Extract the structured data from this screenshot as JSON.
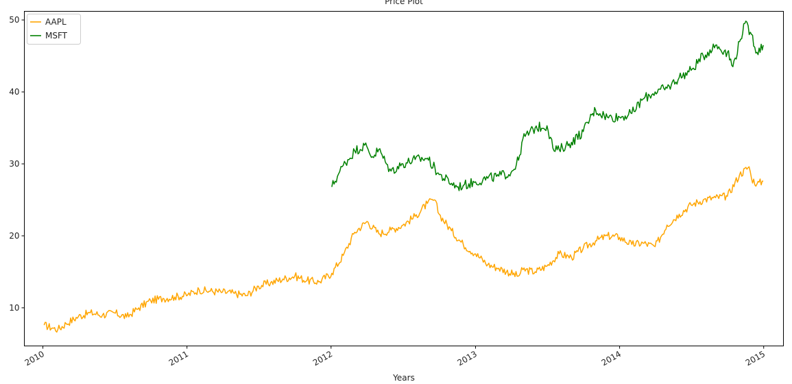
{
  "chart_data": {
    "type": "line",
    "title": "Price Plot",
    "xlabel": "Years",
    "ylabel": "",
    "x_range": [
      "2009-11-15",
      "2015-02-20"
    ],
    "ylim": [
      4.7,
      51.2
    ],
    "x_ticks": [
      "2010",
      "2011",
      "2012",
      "2013",
      "2014",
      "2015"
    ],
    "y_ticks": [
      10,
      20,
      30,
      40,
      50
    ],
    "grid": false,
    "legend_position": "top-left",
    "series": [
      {
        "name": "AAPL",
        "color": "#ffa500",
        "x": [
          "2010-01-04",
          "2010-01-25",
          "2010-02-08",
          "2010-03-01",
          "2010-04-01",
          "2010-05-01",
          "2010-06-01",
          "2010-07-01",
          "2010-08-01",
          "2010-09-01",
          "2010-10-01",
          "2010-11-01",
          "2010-12-01",
          "2011-01-03",
          "2011-02-01",
          "2011-03-01",
          "2011-04-01",
          "2011-05-01",
          "2011-06-01",
          "2011-07-01",
          "2011-08-01",
          "2011-09-01",
          "2011-10-01",
          "2011-11-01",
          "2011-12-01",
          "2012-01-03",
          "2012-02-01",
          "2012-03-01",
          "2012-04-01",
          "2012-05-01",
          "2012-06-01",
          "2012-07-01",
          "2012-08-01",
          "2012-09-01",
          "2012-09-19",
          "2012-10-01",
          "2012-11-01",
          "2012-12-01",
          "2013-01-01",
          "2013-02-01",
          "2013-03-01",
          "2013-04-19",
          "2013-05-01",
          "2013-06-01",
          "2013-07-01",
          "2013-08-01",
          "2013-09-01",
          "2013-10-01",
          "2013-11-01",
          "2013-12-01",
          "2014-01-01",
          "2014-02-01",
          "2014-03-01",
          "2014-04-01",
          "2014-05-01",
          "2014-06-01",
          "2014-07-01",
          "2014-08-01",
          "2014-09-01",
          "2014-10-01",
          "2014-11-01",
          "2014-11-25",
          "2014-12-01",
          "2014-12-15",
          "2014-12-31"
        ],
        "values": [
          7.6,
          7.2,
          7.0,
          7.8,
          8.8,
          9.3,
          9.0,
          9.3,
          8.7,
          10.0,
          11.0,
          11.3,
          11.5,
          11.8,
          12.5,
          12.3,
          12.2,
          12.0,
          11.7,
          13.0,
          13.5,
          14.0,
          14.4,
          13.8,
          13.6,
          14.8,
          17.3,
          20.5,
          22.0,
          20.3,
          20.8,
          21.5,
          22.7,
          24.5,
          25.0,
          23.0,
          20.7,
          18.8,
          17.5,
          16.0,
          15.5,
          14.4,
          15.3,
          15.0,
          15.8,
          17.5,
          17.0,
          18.3,
          19.3,
          20.0,
          19.8,
          18.8,
          19.0,
          18.5,
          21.5,
          23.0,
          24.3,
          25.0,
          25.3,
          25.5,
          28.5,
          29.6,
          28.0,
          27.2,
          27.6
        ]
      },
      {
        "name": "MSFT",
        "color": "#008000",
        "x": [
          "2012-01-03",
          "2012-01-20",
          "2012-02-01",
          "2012-03-01",
          "2012-03-26",
          "2012-04-15",
          "2012-05-01",
          "2012-05-20",
          "2012-06-01",
          "2012-07-01",
          "2012-08-01",
          "2012-09-01",
          "2012-10-01",
          "2012-11-01",
          "2012-11-15",
          "2012-12-01",
          "2013-01-01",
          "2013-02-01",
          "2013-03-01",
          "2013-04-01",
          "2013-04-20",
          "2013-05-01",
          "2013-06-01",
          "2013-07-01",
          "2013-07-19",
          "2013-08-01",
          "2013-09-01",
          "2013-10-01",
          "2013-10-25",
          "2013-11-01",
          "2013-12-01",
          "2014-01-01",
          "2014-02-01",
          "2014-03-01",
          "2014-04-01",
          "2014-05-01",
          "2014-06-01",
          "2014-07-01",
          "2014-08-01",
          "2014-09-01",
          "2014-10-01",
          "2014-10-15",
          "2014-11-01",
          "2014-11-14",
          "2014-12-01",
          "2014-12-15",
          "2014-12-31"
        ],
        "values": [
          26.8,
          28.6,
          29.8,
          31.8,
          32.6,
          31.0,
          32.0,
          30.0,
          29.0,
          30.0,
          30.6,
          30.8,
          28.5,
          27.3,
          26.8,
          27.0,
          27.5,
          28.0,
          28.3,
          28.8,
          30.5,
          33.5,
          35.0,
          35.3,
          31.8,
          32.0,
          33.0,
          34.5,
          37.0,
          37.5,
          36.5,
          36.5,
          37.0,
          39.0,
          40.0,
          40.5,
          42.0,
          43.0,
          45.0,
          46.5,
          45.5,
          43.5,
          47.0,
          49.5,
          48.0,
          45.5,
          46.5
        ]
      }
    ]
  }
}
